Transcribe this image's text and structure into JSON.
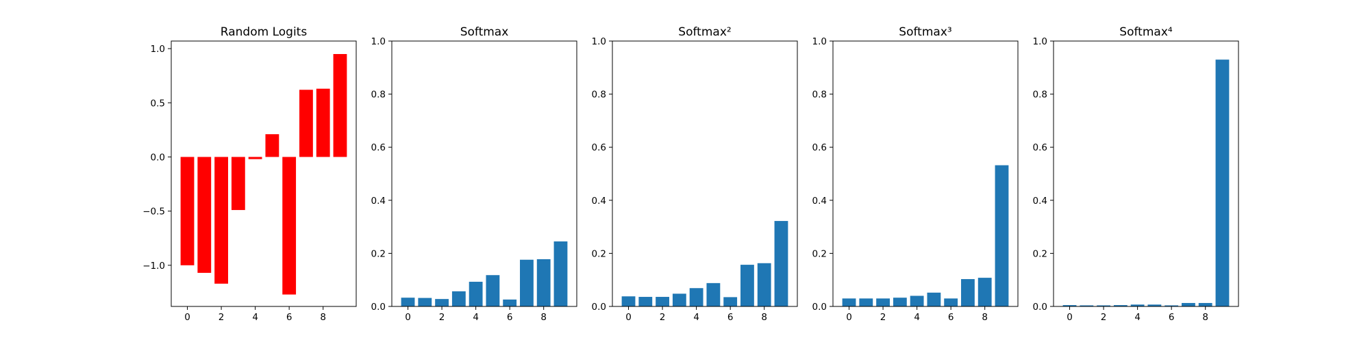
{
  "chart_data": [
    {
      "type": "bar",
      "title": "Random Logits",
      "categories": [
        0,
        1,
        2,
        3,
        4,
        5,
        6,
        7,
        8,
        9
      ],
      "values": [
        -1.0,
        -1.07,
        -1.17,
        -0.49,
        -0.02,
        0.21,
        -1.27,
        0.62,
        0.63,
        0.95
      ],
      "color": "#ff0000",
      "ylim": [
        -1.38,
        1.07
      ],
      "xlim": [
        -0.95,
        9.95
      ],
      "xticks": [
        0,
        2,
        4,
        6,
        8
      ],
      "yticks": [
        -1.0,
        -0.5,
        0.0,
        0.5,
        1.0
      ],
      "ytick_labels": [
        "−1.0",
        "−0.5",
        "0.0",
        "0.5",
        "1.0"
      ],
      "grid": false,
      "xlabel": "",
      "ylabel": ""
    },
    {
      "type": "bar",
      "title": "Softmax",
      "categories": [
        0,
        1,
        2,
        3,
        4,
        5,
        6,
        7,
        8,
        9
      ],
      "values": [
        0.033,
        0.032,
        0.028,
        0.057,
        0.093,
        0.118,
        0.026,
        0.176,
        0.178,
        0.245
      ],
      "color": "#1f77b4",
      "ylim": [
        0,
        1.0
      ],
      "xlim": [
        -0.95,
        9.95
      ],
      "xticks": [
        0,
        2,
        4,
        6,
        8
      ],
      "yticks": [
        0.0,
        0.2,
        0.4,
        0.6,
        0.8,
        1.0
      ],
      "ytick_labels": [
        "0.0",
        "0.2",
        "0.4",
        "0.6",
        "0.8",
        "1.0"
      ],
      "grid": false,
      "xlabel": "",
      "ylabel": ""
    },
    {
      "type": "bar",
      "title": "Softmax²",
      "categories": [
        0,
        1,
        2,
        3,
        4,
        5,
        6,
        7,
        8,
        9
      ],
      "values": [
        0.038,
        0.036,
        0.036,
        0.048,
        0.069,
        0.088,
        0.035,
        0.157,
        0.163,
        0.322
      ],
      "color": "#1f77b4",
      "ylim": [
        0,
        1.0
      ],
      "xlim": [
        -0.95,
        9.95
      ],
      "xticks": [
        0,
        2,
        4,
        6,
        8
      ],
      "yticks": [
        0.0,
        0.2,
        0.4,
        0.6,
        0.8,
        1.0
      ],
      "ytick_labels": [
        "0.0",
        "0.2",
        "0.4",
        "0.6",
        "0.8",
        "1.0"
      ],
      "grid": false,
      "xlabel": "",
      "ylabel": ""
    },
    {
      "type": "bar",
      "title": "Softmax³",
      "categories": [
        0,
        1,
        2,
        3,
        4,
        5,
        6,
        7,
        8,
        9
      ],
      "values": [
        0.03,
        0.03,
        0.03,
        0.033,
        0.04,
        0.052,
        0.03,
        0.103,
        0.108,
        0.532
      ],
      "color": "#1f77b4",
      "ylim": [
        0,
        1.0
      ],
      "xlim": [
        -0.95,
        9.95
      ],
      "xticks": [
        0,
        2,
        4,
        6,
        8
      ],
      "yticks": [
        0.0,
        0.2,
        0.4,
        0.6,
        0.8,
        1.0
      ],
      "ytick_labels": [
        "0.0",
        "0.2",
        "0.4",
        "0.6",
        "0.8",
        "1.0"
      ],
      "grid": false,
      "xlabel": "",
      "ylabel": ""
    },
    {
      "type": "bar",
      "title": "Softmax⁴",
      "categories": [
        0,
        1,
        2,
        3,
        4,
        5,
        6,
        7,
        8,
        9
      ],
      "values": [
        0.005,
        0.004,
        0.004,
        0.005,
        0.007,
        0.007,
        0.004,
        0.013,
        0.013,
        0.93
      ],
      "color": "#1f77b4",
      "ylim": [
        0,
        1.0
      ],
      "xlim": [
        -0.95,
        9.95
      ],
      "xticks": [
        0,
        2,
        4,
        6,
        8
      ],
      "yticks": [
        0.0,
        0.2,
        0.4,
        0.6,
        0.8,
        1.0
      ],
      "ytick_labels": [
        "0.0",
        "0.2",
        "0.4",
        "0.6",
        "0.8",
        "1.0"
      ],
      "grid": false,
      "xlabel": "",
      "ylabel": ""
    }
  ]
}
